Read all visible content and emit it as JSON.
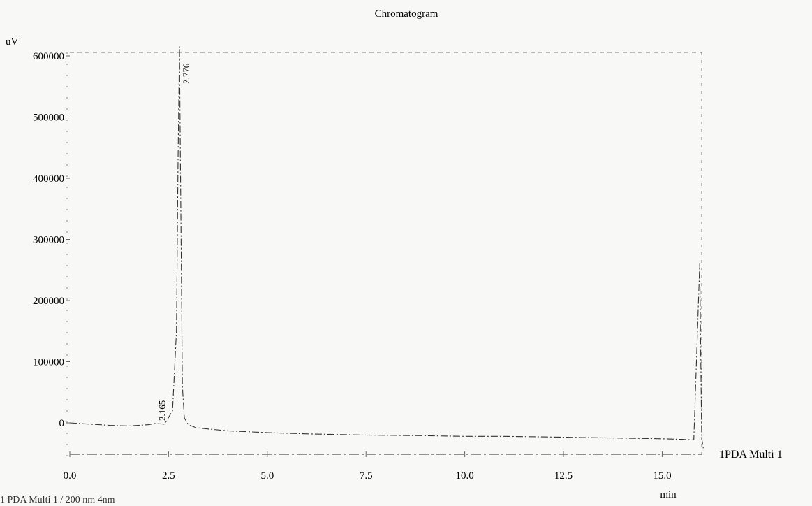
{
  "chart_data": {
    "type": "line",
    "title": "Chromatogram",
    "ylabel": "uV",
    "xlabel": "min",
    "xlim": [
      0.0,
      16.0
    ],
    "ylim": [
      -50000,
      620000
    ],
    "x_ticks": [
      "0.0",
      "2.5",
      "5.0",
      "7.5",
      "10.0",
      "12.5",
      "15.0"
    ],
    "x_tick_values": [
      0.0,
      2.5,
      5.0,
      7.5,
      10.0,
      12.5,
      15.0
    ],
    "y_ticks": [
      "0",
      "100000",
      "200000",
      "300000",
      "400000",
      "500000",
      "600000"
    ],
    "y_tick_values": [
      0,
      100000,
      200000,
      300000,
      400000,
      500000,
      600000
    ],
    "series": [
      {
        "name": "1PDA Multi 1",
        "x": [
          0.0,
          0.5,
          1.0,
          1.5,
          2.0,
          2.165,
          2.4,
          2.6,
          2.7,
          2.74,
          2.776,
          2.8,
          2.85,
          2.9,
          3.0,
          3.2,
          3.5,
          4.0,
          5.0,
          6.0,
          7.5,
          9.0,
          10.0,
          11.0,
          12.0,
          13.0,
          14.0,
          15.0,
          15.5,
          15.8,
          15.95,
          16.0,
          16.05
        ],
        "y": [
          0,
          -2000,
          -4000,
          -5000,
          -3000,
          -1000,
          -2000,
          20000,
          150000,
          430000,
          615000,
          420000,
          60000,
          8000,
          -3000,
          -8000,
          -10000,
          -13000,
          -16000,
          -18000,
          -20000,
          -21000,
          -22000,
          -22000,
          -23000,
          -24000,
          -25000,
          -26000,
          -27000,
          -28000,
          260000,
          -25000,
          -45000
        ]
      }
    ],
    "peak_labels": [
      {
        "text": "2.776",
        "x": 2.776,
        "y": 615000
      },
      {
        "text": "2.165",
        "x": 2.165,
        "y": -1000
      }
    ],
    "trace_label": "1PDA Multi 1",
    "bottom_note": "1 PDA Multi 1 / 200 nm 4nm"
  }
}
